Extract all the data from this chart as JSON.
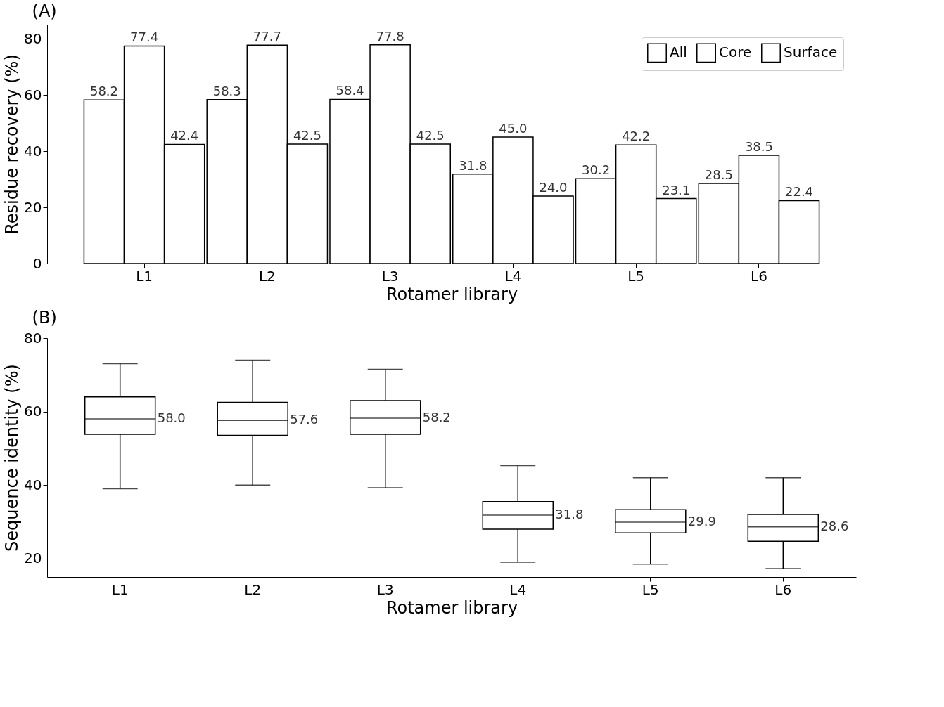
{
  "chart_data": [
    {
      "type": "bar",
      "title": "(A)",
      "xlabel": "Rotamer library",
      "ylabel": "Residue recovery (%)",
      "categories": [
        "L1",
        "L2",
        "L3",
        "L4",
        "L5",
        "L6"
      ],
      "series": [
        {
          "name": "All",
          "color": "#ffffff",
          "values": [
            58.2,
            58.3,
            58.4,
            31.8,
            30.2,
            28.5
          ],
          "value_labels": [
            "58.2",
            "58.3",
            "58.4",
            "31.8",
            "30.2",
            "28.5"
          ]
        },
        {
          "name": "Core",
          "color": "#ffffff",
          "values": [
            77.4,
            77.7,
            77.8,
            45,
            42.2,
            38.5
          ],
          "value_labels": [
            "77.4",
            "77.7",
            "77.8",
            "45.0",
            "42.2",
            "38.5"
          ]
        },
        {
          "name": "Surface",
          "color": "#ffffff",
          "values": [
            42.4,
            42.5,
            42.5,
            24,
            23.1,
            22.4
          ],
          "value_labels": [
            "42.4",
            "42.5",
            "42.5",
            "24.0",
            "23.1",
            "22.4"
          ]
        }
      ],
      "ylim": [
        0,
        85
      ],
      "yticks": [
        0,
        20,
        40,
        60,
        80
      ],
      "legend": "top right",
      "grid": false
    },
    {
      "type": "box",
      "title": "(B)",
      "xlabel": "Rotamer library",
      "ylabel": "Sequence identity (%)",
      "categories": [
        "L1",
        "L2",
        "L3",
        "L4",
        "L5",
        "L6"
      ],
      "boxes": [
        {
          "low": 39,
          "q1": 53.8,
          "median": 58.0,
          "q3": 64,
          "high": 73
        },
        {
          "low": 40,
          "q1": 53.5,
          "median": 57.6,
          "q3": 62.5,
          "high": 74
        },
        {
          "low": 39.3,
          "q1": 53.8,
          "median": 58.2,
          "q3": 63,
          "high": 71.5
        },
        {
          "low": 19,
          "q1": 28,
          "median": 31.8,
          "q3": 35.5,
          "high": 45.3
        },
        {
          "low": 18.5,
          "q1": 27,
          "median": 29.9,
          "q3": 33.3,
          "high": 42
        },
        {
          "low": 17.3,
          "q1": 24.7,
          "median": 28.6,
          "q3": 32,
          "high": 42
        }
      ],
      "value_labels": [
        "58.0",
        "57.6",
        "58.2",
        "31.8",
        "29.9",
        "28.6"
      ],
      "ylim": [
        15,
        80
      ],
      "yticks": [
        20,
        40,
        60,
        80
      ],
      "grid": false
    }
  ]
}
